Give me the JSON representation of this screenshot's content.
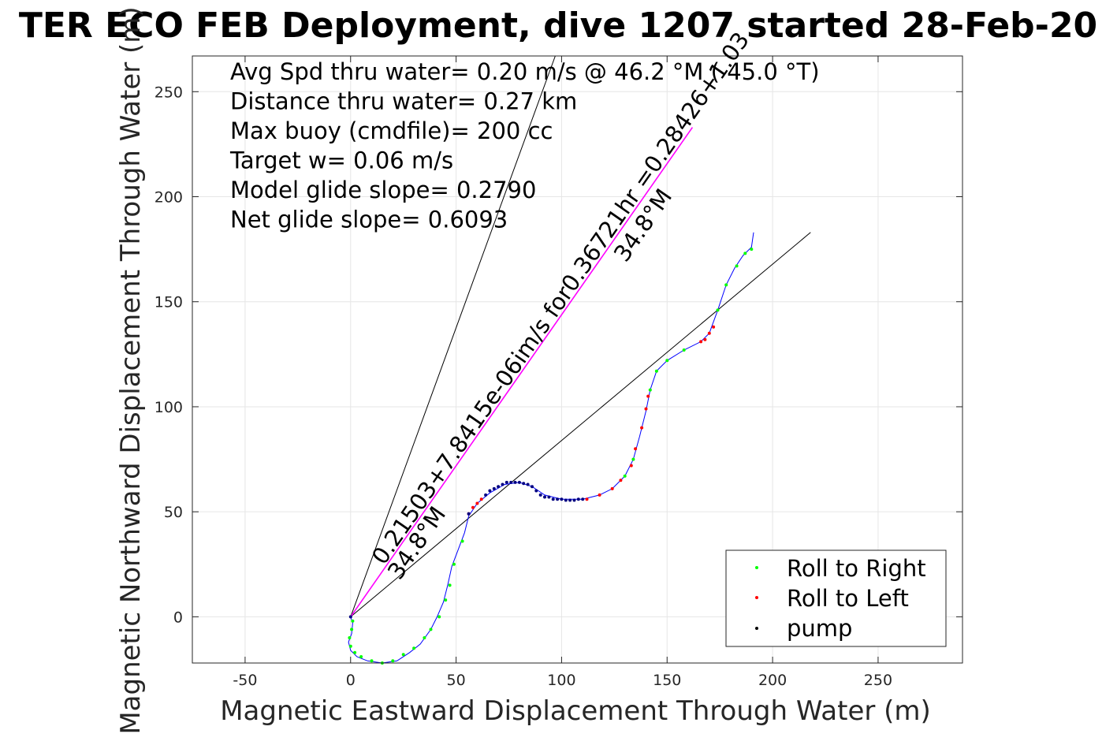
{
  "chart_data": {
    "type": "line",
    "title": "TER ECO FEB Deployment, dive 1207 started 28-Feb-20",
    "xlabel": "Magnetic Eastward Displacement Through Water (m)",
    "ylabel": "Magnetic Northward Displacement Through Water (m)",
    "xlim": [
      -75,
      290
    ],
    "ylim": [
      -22,
      267
    ],
    "xticks": [
      -50,
      0,
      50,
      100,
      150,
      200,
      250
    ],
    "xtick_labels": [
      "-50",
      "0",
      "50",
      "100",
      "150",
      "200",
      "250"
    ],
    "yticks": [
      0,
      50,
      100,
      150,
      200,
      250
    ],
    "ytick_labels": [
      "0",
      "50",
      "100",
      "150",
      "200",
      "250"
    ],
    "grid": true,
    "legend_position": "bottom-right",
    "text_lines": [
      "Avg Spd thru water=  0.20 m/s @  46.2 °M ( 45.0 °T)",
      "Distance thru water=  0.27 km",
      "Max buoy (cmdfile)= 200 cc",
      "Target w= 0.06 m/s",
      "Model glide slope= 0.2790",
      "Net glide slope= 0.6093"
    ],
    "rotated_annotations": [
      "0.21503+7.8415e-06im/s for0.36721hr =0.28426+1.03",
      "34.8°M",
      "34.8°M"
    ],
    "series": [
      {
        "name": "track",
        "color": "#0000ff",
        "points": [
          [
            0,
            0
          ],
          [
            1,
            -3
          ],
          [
            0.5,
            -8
          ],
          [
            -1,
            -12
          ],
          [
            0,
            -16
          ],
          [
            3,
            -19
          ],
          [
            8,
            -21
          ],
          [
            15,
            -22
          ],
          [
            22,
            -21
          ],
          [
            28,
            -17
          ],
          [
            33,
            -13
          ],
          [
            38,
            -6
          ],
          [
            41,
            0
          ],
          [
            44,
            7
          ],
          [
            46,
            15
          ],
          [
            48,
            24
          ],
          [
            51,
            32
          ],
          [
            54,
            40
          ],
          [
            56,
            48
          ],
          [
            60,
            54
          ],
          [
            66,
            59
          ],
          [
            73,
            63
          ],
          [
            80,
            64
          ],
          [
            86,
            62
          ],
          [
            92,
            58
          ],
          [
            100,
            56
          ],
          [
            110,
            56
          ],
          [
            118,
            58
          ],
          [
            124,
            61
          ],
          [
            130,
            67
          ],
          [
            134,
            75
          ],
          [
            137,
            86
          ],
          [
            140,
            98
          ],
          [
            142,
            108
          ],
          [
            145,
            117
          ],
          [
            150,
            122
          ],
          [
            158,
            127
          ],
          [
            166,
            131
          ],
          [
            170,
            135
          ],
          [
            174,
            146
          ],
          [
            178,
            158
          ],
          [
            182,
            166
          ],
          [
            186,
            172
          ],
          [
            190,
            176
          ],
          [
            191,
            183
          ]
        ]
      },
      {
        "name": "Roll to Right",
        "color": "#00ff00",
        "points": [
          [
            1,
            -2
          ],
          [
            0.5,
            -6
          ],
          [
            -0.5,
            -10
          ],
          [
            0,
            -14
          ],
          [
            2,
            -17
          ],
          [
            5,
            -19
          ],
          [
            10,
            -21
          ],
          [
            15,
            -22
          ],
          [
            20,
            -21
          ],
          [
            25,
            -18
          ],
          [
            30,
            -15
          ],
          [
            35,
            -10
          ],
          [
            38,
            -6
          ],
          [
            42,
            0
          ],
          [
            45,
            8
          ],
          [
            47,
            15
          ],
          [
            49,
            25
          ],
          [
            53,
            36
          ],
          [
            130,
            67
          ],
          [
            134,
            75
          ],
          [
            142,
            108
          ],
          [
            145,
            117
          ],
          [
            150,
            122
          ],
          [
            158,
            127
          ],
          [
            174,
            146
          ],
          [
            178,
            158
          ],
          [
            183,
            167
          ],
          [
            187,
            173
          ],
          [
            190,
            175
          ]
        ]
      },
      {
        "name": "Roll to Left",
        "color": "#ff0000",
        "points": [
          [
            56,
            49
          ],
          [
            58,
            52
          ],
          [
            60,
            54
          ],
          [
            62,
            56
          ],
          [
            112,
            56
          ],
          [
            118,
            58
          ],
          [
            124,
            61
          ],
          [
            128,
            65
          ],
          [
            133,
            72
          ],
          [
            135,
            80
          ],
          [
            138,
            90
          ],
          [
            140,
            99
          ],
          [
            141,
            105
          ],
          [
            166,
            131
          ],
          [
            168,
            132
          ],
          [
            170,
            135
          ],
          [
            172,
            138
          ]
        ]
      },
      {
        "name": "pump",
        "color": "#000000",
        "points": [
          [
            0,
            0
          ],
          [
            56,
            49
          ],
          [
            64,
            58
          ],
          [
            66,
            60
          ],
          [
            68,
            61
          ],
          [
            70,
            62
          ],
          [
            72,
            63
          ],
          [
            74,
            64
          ],
          [
            76,
            64
          ],
          [
            78,
            64
          ],
          [
            80,
            64
          ],
          [
            82,
            63.5
          ],
          [
            84,
            63
          ],
          [
            86,
            62
          ],
          [
            88,
            60
          ],
          [
            90,
            58
          ],
          [
            92,
            57
          ],
          [
            94,
            57
          ],
          [
            96,
            56
          ],
          [
            98,
            56
          ],
          [
            100,
            56
          ],
          [
            102,
            55.5
          ],
          [
            104,
            55.5
          ],
          [
            106,
            55.5
          ],
          [
            108,
            56
          ],
          [
            110,
            56
          ]
        ]
      },
      {
        "name": "desired heading",
        "color": "#ff00ff",
        "points": [
          [
            0,
            0
          ],
          [
            162,
            233
          ]
        ]
      },
      {
        "name": "heading line",
        "color": "#000000",
        "points": [
          [
            0,
            0
          ],
          [
            97,
            267
          ]
        ]
      },
      {
        "name": "net track line",
        "color": "#000000",
        "points": [
          [
            0,
            0
          ],
          [
            218,
            183
          ]
        ]
      }
    ]
  },
  "legend": {
    "items": [
      {
        "label": "Roll to Right",
        "color": "#00ff00"
      },
      {
        "label": "Roll to Left",
        "color": "#ff0000"
      },
      {
        "label": "pump",
        "color": "#000000"
      }
    ]
  }
}
